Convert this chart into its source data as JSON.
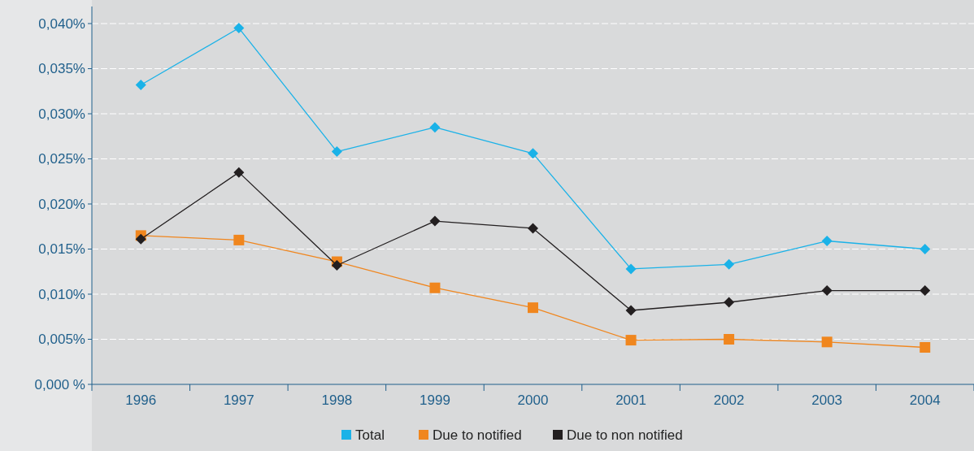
{
  "chart_data": {
    "type": "line",
    "categories": [
      "1996",
      "1997",
      "1998",
      "1999",
      "2000",
      "2001",
      "2002",
      "2003",
      "2004"
    ],
    "series": [
      {
        "name": "Total",
        "color": "#1ab2e8",
        "marker": "diamond",
        "values": [
          0.0332,
          0.0395,
          0.0258,
          0.0285,
          0.0256,
          0.0128,
          0.0133,
          0.0159,
          0.015
        ]
      },
      {
        "name": "Due to notified",
        "color": "#f0861e",
        "marker": "square",
        "values": [
          0.0165,
          0.016,
          0.0136,
          0.0107,
          0.0085,
          0.0049,
          0.005,
          0.0047,
          0.0041
        ]
      },
      {
        "name": "Due to non notified",
        "color": "#231f20",
        "marker": "diamond",
        "values": [
          0.0161,
          0.0235,
          0.0132,
          0.0181,
          0.0173,
          0.0082,
          0.0091,
          0.0104,
          0.0104
        ]
      }
    ],
    "ylim": [
      0,
      0.04
    ],
    "yticks": [
      {
        "value": 0,
        "label": "0,000 %"
      },
      {
        "value": 0.005,
        "label": "0,005%"
      },
      {
        "value": 0.01,
        "label": "0,010%"
      },
      {
        "value": 0.015,
        "label": "0,015%"
      },
      {
        "value": 0.02,
        "label": "0,020%"
      },
      {
        "value": 0.025,
        "label": "0,025%"
      },
      {
        "value": 0.03,
        "label": "0,030%"
      },
      {
        "value": 0.035,
        "label": "0,035%"
      },
      {
        "value": 0.04,
        "label": "0,040%"
      }
    ],
    "grid": "y",
    "legend": "bottom"
  }
}
